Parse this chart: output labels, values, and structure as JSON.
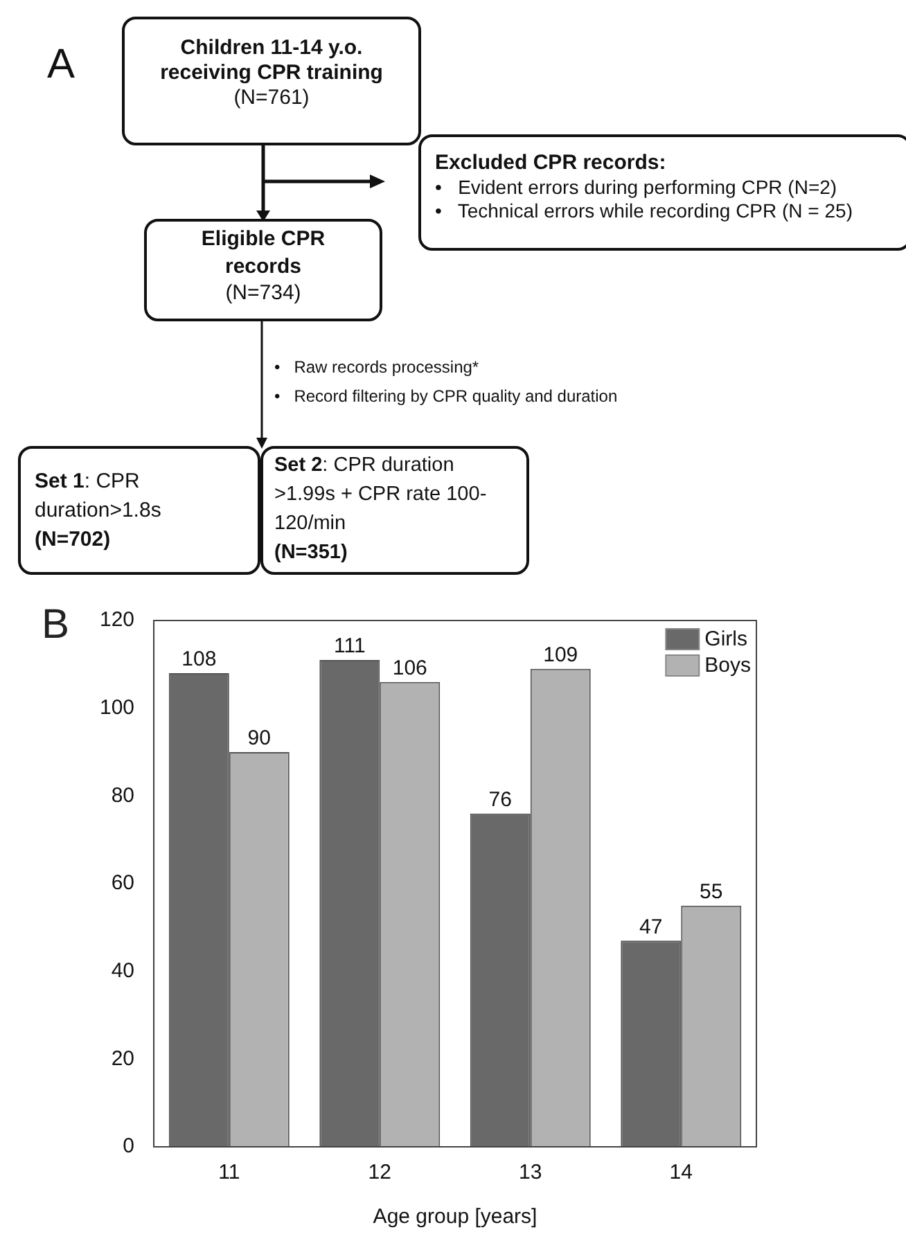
{
  "chart_data": [
    {
      "type": "other",
      "annotations": [
        "A",
        "Children 11-14 y.o. receiving CPR training",
        "(N=761)",
        "Excluded CPR records:",
        "•   Evident errors during performing CPR (N=2)",
        "•   Technical errors while recording CPR (N = 25)",
        "Eligible CPR records",
        "(N=734)",
        "•   Raw records processing*",
        "•   Record filtering by CPR quality and duration",
        "Set 1: CPR duration>1.8s",
        "(N=702)",
        "Set 2: CPR duration >1.99s + CPR rate 100-120/min",
        "(N=351)"
      ]
    },
    {
      "type": "bar",
      "xlabel": "Age group [years]",
      "categories": [
        "11",
        "12",
        "13",
        "14"
      ],
      "series": [
        {
          "name": "Girls",
          "color": "#696969",
          "values": [
            108,
            111,
            76,
            47
          ]
        },
        {
          "name": "Boys",
          "color": "#b2b2b2",
          "values": [
            90,
            106,
            109,
            55
          ]
        }
      ],
      "ylim": [
        0,
        120
      ],
      "yticks": [
        0,
        20,
        40,
        60,
        80,
        100,
        120
      ],
      "grid": false,
      "legend": "top right",
      "data_labels": true,
      "annotations": [
        "B"
      ]
    }
  ]
}
